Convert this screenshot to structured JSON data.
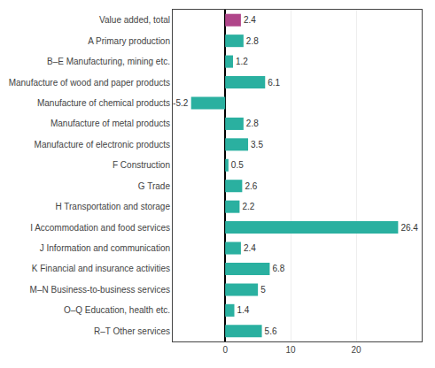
{
  "chart_data": {
    "type": "bar",
    "orientation": "horizontal",
    "categories": [
      "Value added, total",
      "A Primary production",
      "B–E Manufacturing, mining etc.",
      "Manufacture of wood and paper products",
      "Manufacture of chemical products",
      "Manufacture of metal products",
      "Manufacture of electronic products",
      "F Construction",
      "G Trade",
      "H Transportation and storage",
      "I Accommodation and food services",
      "J Information and communication",
      "K Financial and insurance activities",
      "M–N Business-to-business services",
      "O–Q Education, health etc.",
      "R–T Other services"
    ],
    "values": [
      2.4,
      2.8,
      1.2,
      6.1,
      -5.2,
      2.8,
      3.5,
      0.5,
      2.6,
      2.2,
      26.4,
      2.4,
      6.8,
      5.0,
      1.4,
      5.6
    ],
    "colors": [
      "#b0468a",
      "#2ab0a0",
      "#2ab0a0",
      "#2ab0a0",
      "#2ab0a0",
      "#2ab0a0",
      "#2ab0a0",
      "#2ab0a0",
      "#2ab0a0",
      "#2ab0a0",
      "#2ab0a0",
      "#2ab0a0",
      "#2ab0a0",
      "#2ab0a0",
      "#2ab0a0",
      "#2ab0a0"
    ],
    "xlim": [
      -8,
      30
    ],
    "xticks": [
      0,
      10,
      20
    ],
    "grid": true,
    "data_labels": true
  }
}
